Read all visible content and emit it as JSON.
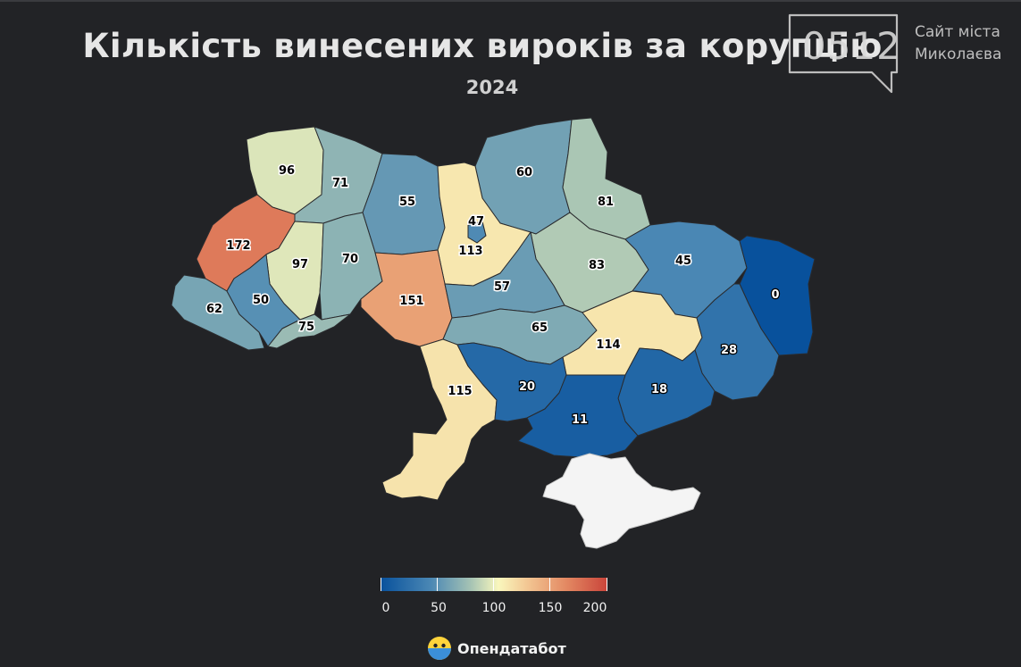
{
  "title": "Кількість винесених вироків за корупцію",
  "subtitle": "2024",
  "colors": {
    "background": "#222326",
    "crimea": "#f4f4f4",
    "scale_low": "#08519c",
    "scale_mid": "#f9f7bd",
    "scale_high": "#c9443a"
  },
  "chart_data": {
    "type": "choropleth",
    "regions": [
      {
        "value": 96
      },
      {
        "value": 71
      },
      {
        "value": 55
      },
      {
        "value": 60
      },
      {
        "value": 81
      },
      {
        "value": 172
      },
      {
        "value": 97
      },
      {
        "value": 70
      },
      {
        "value": 47
      },
      {
        "value": 113
      },
      {
        "value": 83
      },
      {
        "value": 45
      },
      {
        "value": 0
      },
      {
        "value": 62
      },
      {
        "value": 50
      },
      {
        "value": 75
      },
      {
        "value": 151
      },
      {
        "value": 57
      },
      {
        "value": 65
      },
      {
        "value": 114
      },
      {
        "value": 28
      },
      {
        "value": 115
      },
      {
        "value": 20
      },
      {
        "value": 18
      },
      {
        "value": 11
      }
    ],
    "legend": {
      "min": 0,
      "max": 200,
      "ticks": [
        "0",
        "50",
        "100",
        "150",
        "200"
      ]
    }
  },
  "branding": {
    "name": "Опендатабот",
    "icon": "opendatabot-logo-icon"
  },
  "watermark": {
    "number": "0512",
    "line1": "Сайт міста",
    "line2": "Миколаєва"
  }
}
